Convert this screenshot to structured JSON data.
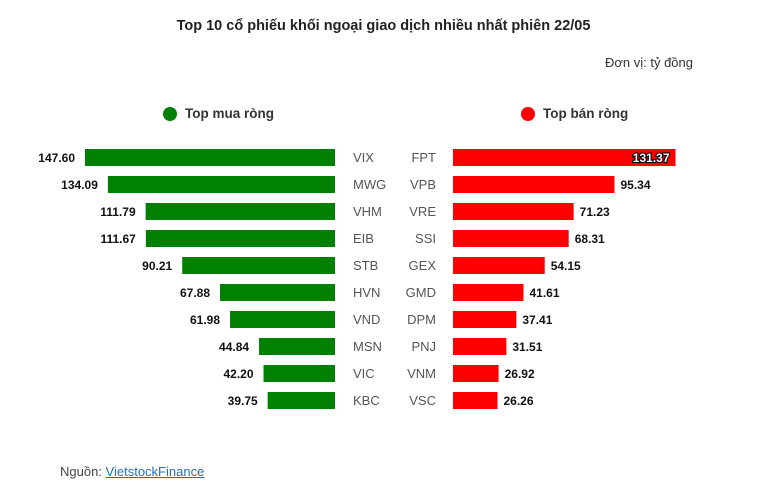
{
  "header": {
    "title": "Top 10 cổ phiếu khối ngoại giao dịch nhiều nhất phiên 22/05",
    "unit": "Đơn vị: tỷ đồng"
  },
  "legend": {
    "buy_label": "Top mua ròng",
    "sell_label": "Top bán ròng"
  },
  "colors": {
    "buy": "#008000",
    "sell": "#ff0000"
  },
  "chart_data": {
    "type": "bar",
    "buy": {
      "name": "Top mua ròng",
      "categories": [
        "VIX",
        "MWG",
        "VHM",
        "EIB",
        "STB",
        "HVN",
        "VND",
        "MSN",
        "VIC",
        "KBC"
      ],
      "values": [
        147.6,
        134.09,
        111.79,
        111.67,
        90.21,
        67.88,
        61.98,
        44.84,
        42.2,
        39.75
      ],
      "labels": [
        "147.60",
        "134.09",
        "111.79",
        "111.67",
        "90.21",
        "67.88",
        "61.98",
        "44.84",
        "42.20",
        "39.75"
      ]
    },
    "sell": {
      "name": "Top bán ròng",
      "categories": [
        "FPT",
        "VPB",
        "VRE",
        "SSI",
        "GEX",
        "GMD",
        "DPM",
        "PNJ",
        "VNM",
        "VSC"
      ],
      "values": [
        131.37,
        95.34,
        71.23,
        68.31,
        54.15,
        41.61,
        37.41,
        31.51,
        26.92,
        26.26
      ],
      "labels": [
        "131.37",
        "95.34",
        "71.23",
        "68.31",
        "54.15",
        "41.61",
        "37.41",
        "31.51",
        "26.92",
        "26.26"
      ]
    }
  },
  "footer": {
    "source_prefix": "Nguồn: ",
    "source_link": "VietstockFinance"
  }
}
